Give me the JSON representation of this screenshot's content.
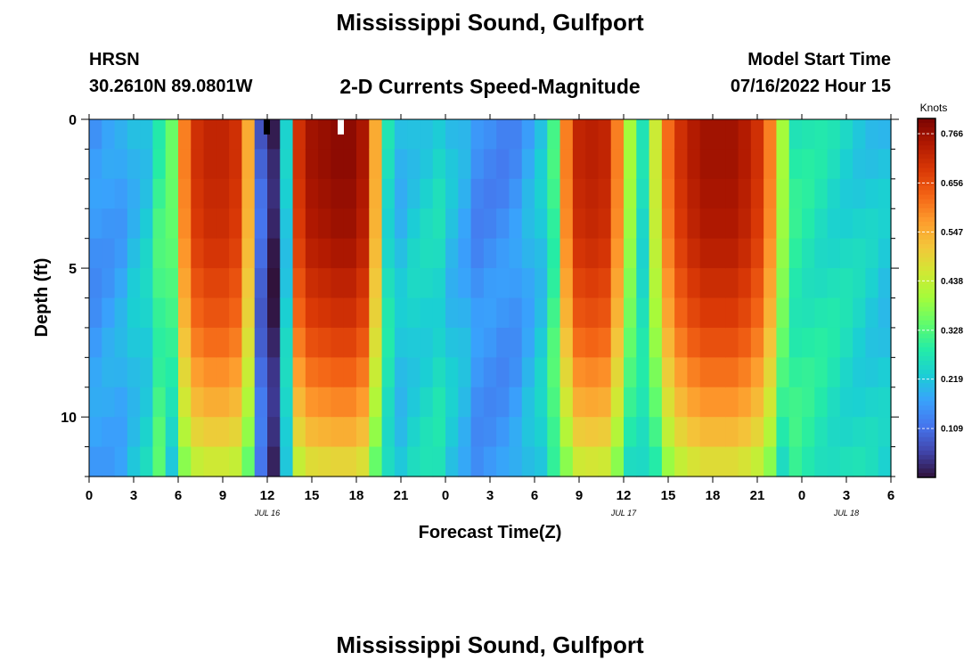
{
  "header": {
    "title": "Mississippi Sound, Gulfport",
    "station": "HRSN",
    "coords": "30.2610N  89.0801W",
    "subtitle": "2-D Currents Speed-Magnitude",
    "model_start_label": "Model Start Time",
    "model_start_value": "07/16/2022 Hour 15"
  },
  "footer": {
    "title": "Mississippi Sound, Gulfport"
  },
  "colors": {
    "background": "#ffffff",
    "colormap": [
      "#30123b",
      "#4145ab",
      "#4675ed",
      "#39a2fc",
      "#1bcfd4",
      "#24eca6",
      "#61fc6c",
      "#a4fc3b",
      "#d1e834",
      "#f3c63a",
      "#fe9b2d",
      "#f36315",
      "#d93806",
      "#b11901",
      "#7a0402"
    ]
  },
  "chart_data": {
    "type": "heatmap",
    "title": "2-D Currents Speed-Magnitude",
    "xlabel": "Forecast Time(Z)",
    "ylabel": "Depth (ft)",
    "x_hours": [
      0,
      39
    ],
    "ylim": [
      0,
      12
    ],
    "x_ticks": [
      {
        "hour": 0,
        "label": "0"
      },
      {
        "hour": 3,
        "label": "3"
      },
      {
        "hour": 6,
        "label": "6"
      },
      {
        "hour": 9,
        "label": "9"
      },
      {
        "hour": 12,
        "label": "12"
      },
      {
        "hour": 15,
        "label": "15"
      },
      {
        "hour": 18,
        "label": "18"
      },
      {
        "hour": 21,
        "label": "21"
      },
      {
        "hour": 24,
        "label": "0"
      },
      {
        "hour": 27,
        "label": "3"
      },
      {
        "hour": 30,
        "label": "6"
      },
      {
        "hour": 33,
        "label": "9"
      },
      {
        "hour": 36,
        "label": "12"
      },
      {
        "hour": 39,
        "label": "15"
      },
      {
        "hour": 42,
        "label": "18"
      },
      {
        "hour": 45,
        "label": "21"
      },
      {
        "hour": 48,
        "label": "0"
      },
      {
        "hour": 51,
        "label": "3"
      },
      {
        "hour": 54,
        "label": "6"
      }
    ],
    "date_labels": [
      {
        "hour": 12,
        "label": "JUL 16"
      },
      {
        "hour": 36,
        "label": "JUL 17"
      },
      {
        "hour": 51,
        "label": "JUL 18"
      }
    ],
    "y_ticks": [
      {
        "depth": 0,
        "label": "0"
      },
      {
        "depth": 5,
        "label": "5"
      },
      {
        "depth": 10,
        "label": "10"
      }
    ],
    "colorbar": {
      "title": "Knots",
      "range": [
        0,
        0.8
      ],
      "ticks": [
        "0.766",
        "0.656",
        "0.547",
        "0.438",
        "0.328",
        "0.219",
        "0.109"
      ]
    },
    "surface_speed_by_hour": [
      0.15,
      0.16,
      0.17,
      0.2,
      0.22,
      0.3,
      0.35,
      0.6,
      0.7,
      0.72,
      0.72,
      0.7,
      0.55,
      0.09,
      0.01,
      0.22,
      0.7,
      0.76,
      0.77,
      0.78,
      0.78,
      0.75,
      0.55,
      0.25,
      0.2,
      0.22,
      0.23,
      0.24,
      0.2,
      0.18,
      0.14,
      0.14,
      0.14,
      0.15,
      0.18,
      0.21,
      0.3,
      0.6,
      0.72,
      0.73,
      0.72,
      0.6,
      0.4,
      0.25,
      0.45,
      0.62,
      0.7,
      0.74,
      0.76,
      0.76,
      0.76,
      0.74,
      0.7,
      0.6,
      0.4,
      0.28,
      0.27,
      0.26,
      0.25,
      0.24,
      0.23,
      0.22,
      0.21
    ],
    "depth_decay": [
      1.0,
      1.0,
      0.99,
      0.98,
      0.96,
      0.93,
      0.9,
      0.86,
      0.81,
      0.76,
      0.7,
      0.63,
      0.55
    ],
    "missing_markers": [
      {
        "hour": 17,
        "depth": 0,
        "label": "white"
      },
      {
        "hour": 12,
        "depth": 0,
        "label": "black"
      }
    ]
  }
}
